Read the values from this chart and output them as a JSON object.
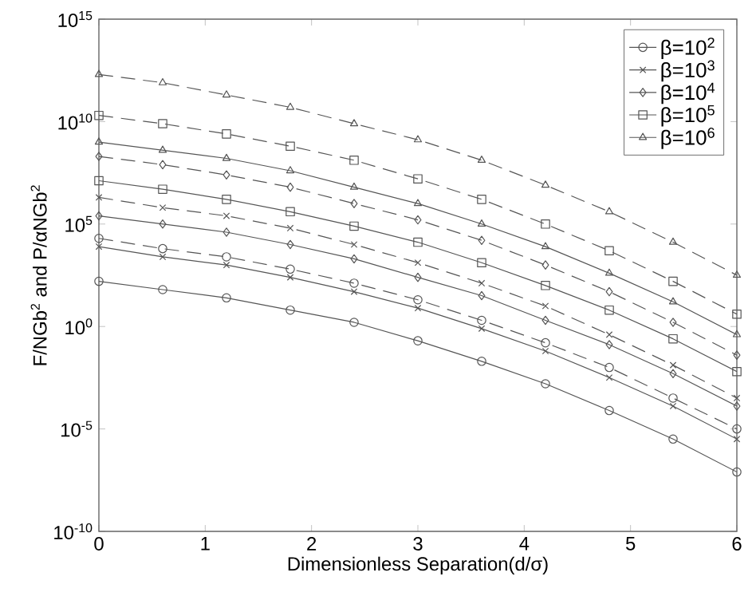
{
  "chart_data": {
    "type": "line",
    "xlabel": "Dimensionless Separation(d/σ)",
    "ylabel": "F/NGb$^{2}$ and P/αNGb$^{2}$",
    "x": [
      0,
      0.6,
      1.2,
      1.8,
      2.4,
      3.0,
      3.6,
      4.2,
      4.8,
      5.4,
      6.0
    ],
    "xlim": [
      0,
      6
    ],
    "xticks": [
      0,
      1,
      2,
      3,
      4,
      5,
      6
    ],
    "ylim": [
      1e-10,
      1000000000000000.0
    ],
    "yticks": [
      {
        "value": 1e-10,
        "label": "10$^{-10}$"
      },
      {
        "value": 1e-05,
        "label": "10$^{-5}$"
      },
      {
        "value": 1,
        "label": "10$^{0}$"
      },
      {
        "value": 100000.0,
        "label": "10$^{5}$"
      },
      {
        "value": 10000000000.0,
        "label": "10$^{10}$"
      },
      {
        "value": 1000000000000000.0,
        "label": "10$^{15}$"
      }
    ],
    "log": "y",
    "grid": false,
    "legend": "top right",
    "series": [
      {
        "name": "β=10$^{2}$",
        "color": "#555555",
        "marker": "circle",
        "line_style": "solid",
        "values": [
          160,
          63,
          25,
          6.3,
          1.6,
          0.2,
          0.02,
          0.0016,
          7.9e-05,
          3.2e-06,
          7.9e-08
        ]
      },
      {
        "name": "β=10$^{3}$",
        "color": "#555555",
        "marker": "cross",
        "line_style": "solid",
        "values": [
          7900.0,
          2500.0,
          1000.0,
          250,
          50,
          7.9,
          0.79,
          0.063,
          0.0032,
          0.00013,
          3.2e-06
        ]
      },
      {
        "name": "β=10$^{4}$",
        "color": "#555555",
        "marker": "diamond",
        "line_style": "solid",
        "values": [
          250000.0,
          100000.0,
          40000.0,
          10000.0,
          2000.0,
          250,
          32,
          2,
          0.13,
          0.005,
          0.00013
        ]
      },
      {
        "name": "β=10$^{5}$",
        "color": "#555555",
        "marker": "square",
        "line_style": "solid",
        "values": [
          13000000.0,
          5000000.0,
          1600000.0,
          400000.0,
          79000.0,
          13000.0,
          1300.0,
          100,
          6.3,
          0.25,
          0.0063
        ]
      },
      {
        "name": "β=10$^{6}$",
        "color": "#555555",
        "marker": "triangle",
        "line_style": "solid",
        "values": [
          1000000000.0,
          400000000.0,
          160000000.0,
          40000000.0,
          6300000.0,
          1000000.0,
          100000.0,
          7900.0,
          400,
          16,
          0.4
        ]
      },
      {
        "color": "#555555",
        "marker": "circle",
        "line_style": "dashed",
        "values": [
          20000.0,
          6300.0,
          2500.0,
          630,
          130,
          20,
          2,
          0.16,
          0.01,
          0.00032,
          1e-05
        ]
      },
      {
        "color": "#555555",
        "marker": "cross",
        "line_style": "dashed",
        "values": [
          2000000.0,
          630000.0,
          250000.0,
          63000.0,
          10000.0,
          1300.0,
          130,
          10,
          0.4,
          0.013,
          0.00032
        ]
      },
      {
        "color": "#555555",
        "marker": "diamond",
        "line_style": "dashed",
        "values": [
          200000000.0,
          79000000.0,
          25000000.0,
          6300000.0,
          1000000.0,
          160000.0,
          16000.0,
          1000.0,
          50,
          1.6,
          0.04
        ]
      },
      {
        "color": "#555555",
        "marker": "square",
        "line_style": "dashed",
        "values": [
          20000000000.0,
          7900000000.0,
          2500000000.0,
          630000000.0,
          130000000.0,
          16000000.0,
          1600000.0,
          100000.0,
          5000.0,
          160,
          4
        ]
      },
      {
        "color": "#555555",
        "marker": "triangle",
        "line_style": "dashed",
        "values": [
          2000000000000.0,
          790000000000.0,
          200000000000.0,
          50000000000.0,
          7900000000.0,
          1300000000.0,
          130000000.0,
          7900000.0,
          400000.0,
          13000.0,
          320
        ]
      }
    ]
  }
}
